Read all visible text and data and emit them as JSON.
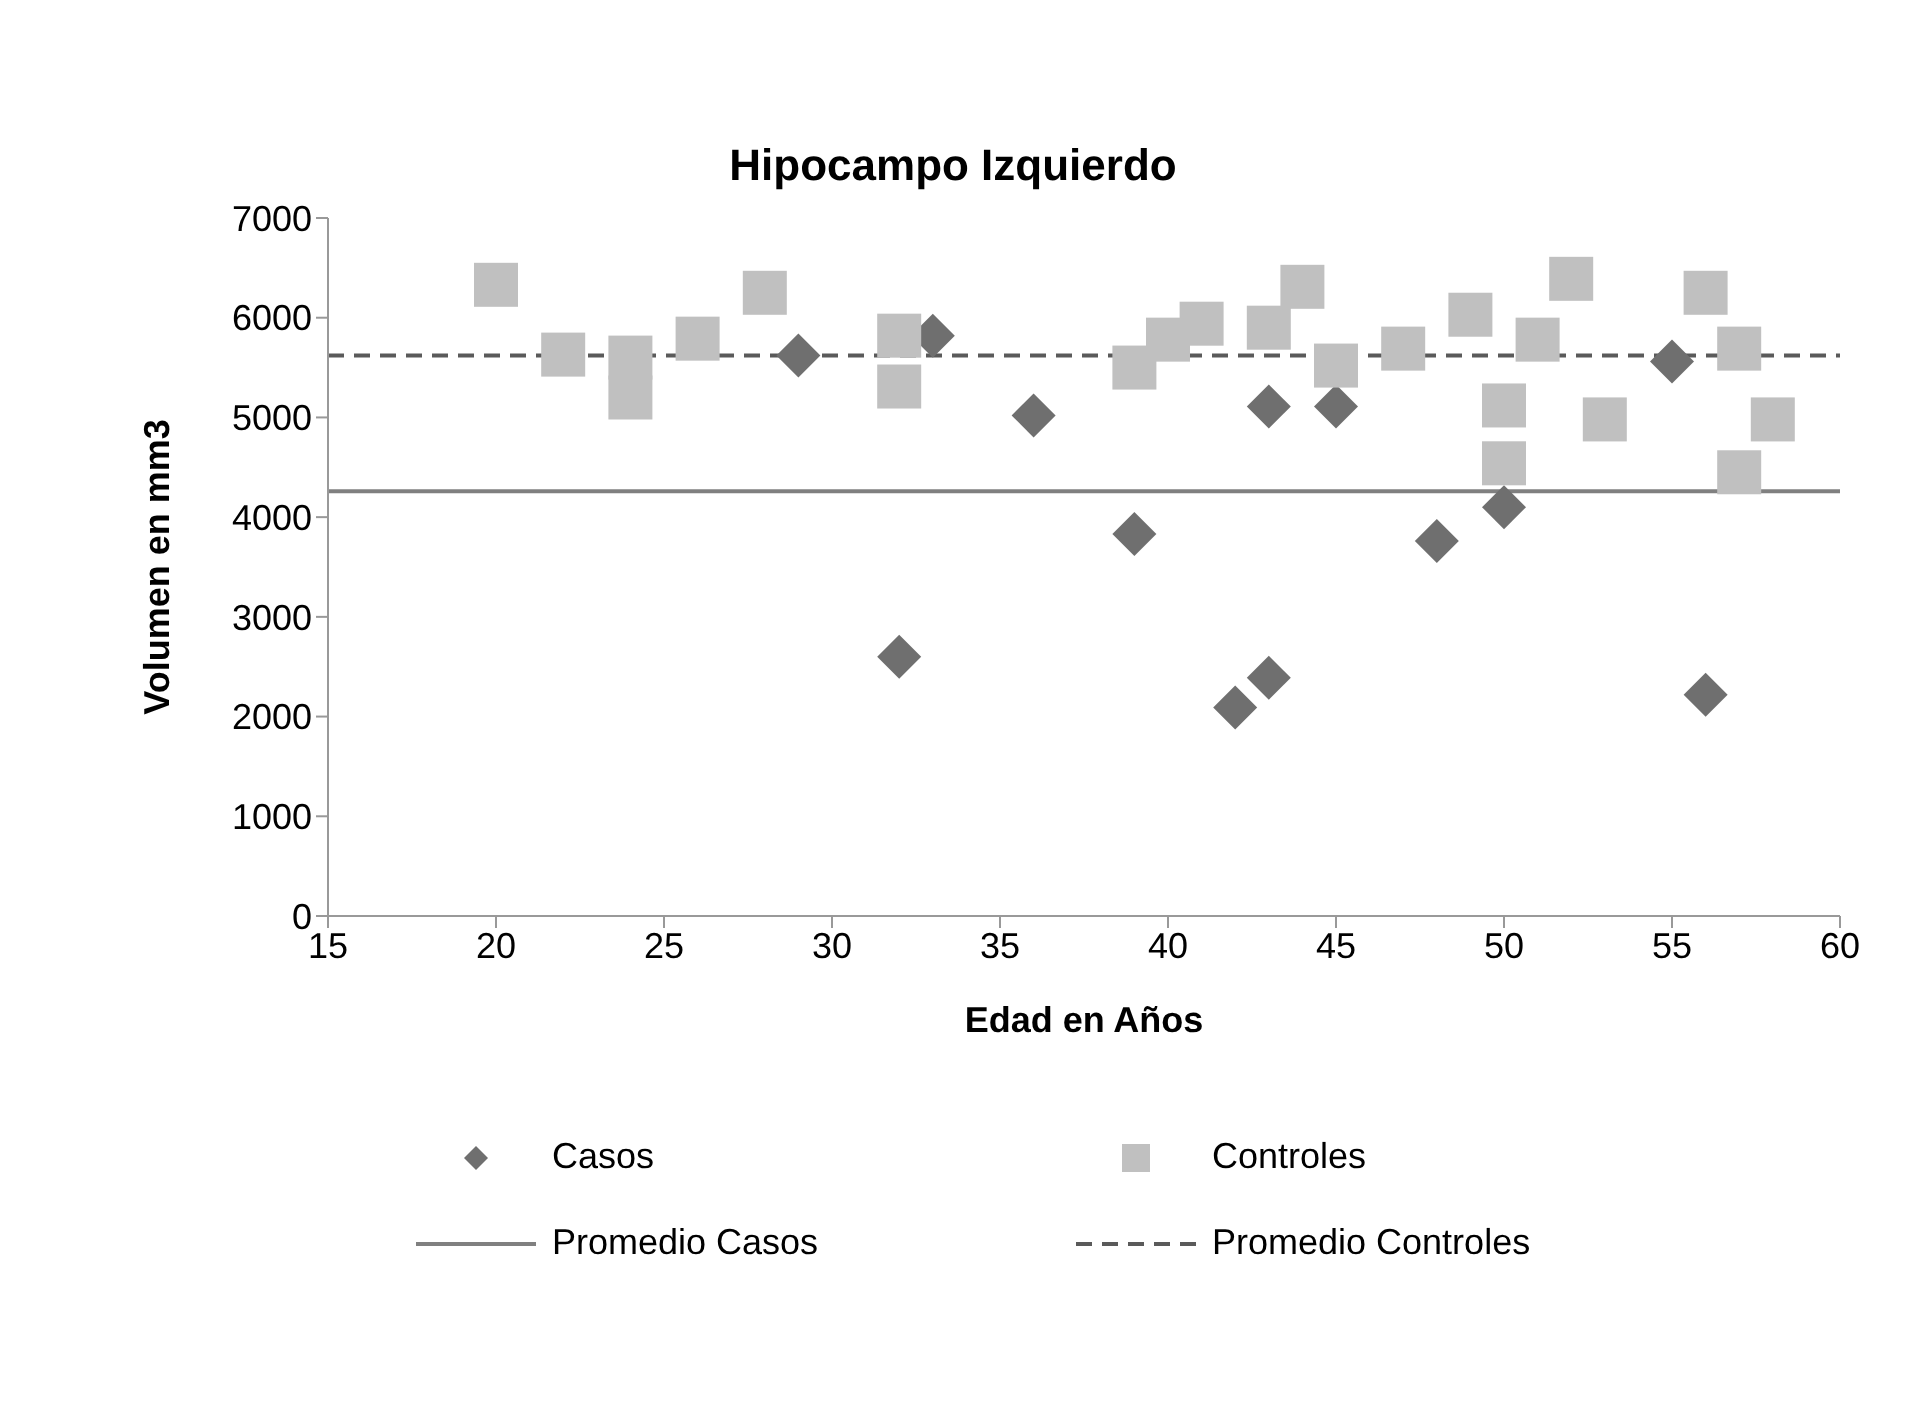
{
  "chart_data": {
    "type": "scatter",
    "title": "Hipocampo Izquierdo",
    "xlabel": "Edad en Años",
    "ylabel": "Volumen en mm3",
    "xlim": [
      15,
      60
    ],
    "xticks": [
      15,
      20,
      25,
      30,
      35,
      40,
      45,
      50,
      55,
      60
    ],
    "ylim": [
      0,
      7000
    ],
    "yticks": [
      0,
      1000,
      2000,
      3000,
      4000,
      5000,
      6000,
      7000
    ],
    "grid": false,
    "legend": "bottom",
    "series": [
      {
        "name": "Casos",
        "marker": "diamond",
        "color": "#6f6f6f",
        "x": [
          29,
          32,
          33,
          36,
          39,
          42,
          43,
          43,
          45,
          48,
          50,
          51,
          55,
          56
        ],
        "values": [
          5620,
          2600,
          5820,
          5020,
          3830,
          2090,
          2390,
          5110,
          5110,
          3760,
          4100,
          null,
          5560,
          2220
        ]
      },
      {
        "name": "Controles",
        "marker": "square",
        "color": "#c0c0c0",
        "x": [
          20,
          22,
          24,
          24,
          26,
          28,
          32,
          32,
          39,
          40,
          41,
          43,
          44,
          45,
          47,
          49,
          50,
          50,
          51,
          52,
          53,
          56,
          57,
          57,
          58
        ],
        "values": [
          6330,
          5630,
          5600,
          5200,
          5790,
          6250,
          5820,
          5310,
          5500,
          5780,
          5940,
          5900,
          6310,
          5520,
          5690,
          6030,
          5120,
          4540,
          5780,
          6390,
          4980,
          6250,
          5690,
          4450,
          4980
        ]
      },
      {
        "name": "Promedio Casos",
        "type": "line",
        "line_style": "solid",
        "color": "#808080",
        "x": [
          15,
          60
        ],
        "values": [
          4260,
          4260
        ]
      },
      {
        "name": "Promedio Controles",
        "type": "line",
        "line_style": "dashed",
        "color": "#5a5a5a",
        "x": [
          15,
          60
        ],
        "values": [
          5620,
          5620
        ]
      }
    ]
  }
}
